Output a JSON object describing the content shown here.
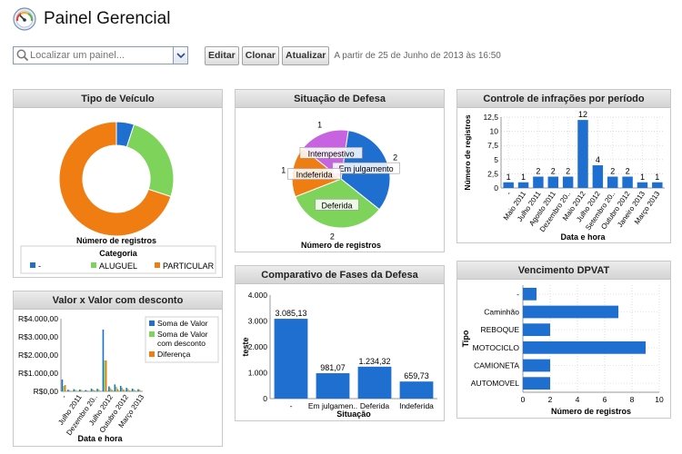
{
  "header": {
    "title": "Painel Gerencial"
  },
  "toolbar": {
    "search_placeholder": "Localizar um painel...",
    "edit_label": "Editar",
    "clone_label": "Clonar",
    "refresh_label": "Atualizar",
    "as_of_text": "A partir de 25 de Junho de 2013 às 16:50"
  },
  "panels": {
    "tipo_veiculo": {
      "title": "Tipo de Veículo"
    },
    "situacao_defesa": {
      "title": "Situação de Defesa"
    },
    "controle_infracoes": {
      "title": "Controle de infrações por período"
    },
    "valor_desconto": {
      "title": "Valor x Valor com desconto"
    },
    "comparativo_fases": {
      "title": "Comparativo de Fases da Defesa"
    },
    "vencimento_dpvat": {
      "title": "Vencimento DPVAT"
    }
  },
  "chart_data": [
    {
      "id": "tipo_veiculo",
      "type": "pie",
      "donut": true,
      "xlabel": "Número de registros",
      "legend_title": "Categoria",
      "legend_position": "bottom",
      "categories": [
        "-",
        "ALUGUEL",
        "PARTICULAR"
      ],
      "values": [
        1,
        5,
        14
      ],
      "colors": [
        "#1f6fd0",
        "#7ed35a",
        "#f07d12"
      ]
    },
    {
      "id": "situacao_defesa",
      "type": "pie",
      "xlabel": "Número de registros",
      "categories": [
        "Em julgamento",
        "Deferida",
        "Indeferida",
        "Intempestivo"
      ],
      "values": [
        2,
        2,
        1,
        1
      ],
      "colors": [
        "#1f6fd0",
        "#7ed35a",
        "#f07d12",
        "#c763e0"
      ]
    },
    {
      "id": "controle_infracoes",
      "type": "bar",
      "xlabel": "Data e hora",
      "ylabel": "Número de registros",
      "ylim": [
        0,
        12.5
      ],
      "yticks": [
        "0",
        "2,5",
        "5",
        "7,5",
        "10",
        "12,5"
      ],
      "categories": [
        "-",
        "Maio 2011",
        "Julho 2011",
        "Agosto 2011",
        "Dezembro 20..",
        "Maio 2012",
        "Julho 2012",
        "Setembro 20..",
        "Outubro 2012",
        "Janeiro 2013",
        "Março 2013"
      ],
      "values": [
        1,
        1,
        2,
        2,
        2,
        12,
        4,
        2,
        2,
        1,
        1
      ],
      "grid": true
    },
    {
      "id": "valor_desconto",
      "type": "bar",
      "xlabel": "Data e hora",
      "ylim": [
        0,
        4000
      ],
      "yticks": [
        "R$0,00",
        "R$1.000,00",
        "R$2.000,00",
        "R$3.000,00",
        "R$4.000,00"
      ],
      "xticks": [
        "-",
        "Julho 2011",
        "Dezembro 20..",
        "Julho 2012",
        "Outubro 2012",
        "Março 2013"
      ],
      "legend_position": "right",
      "series": [
        {
          "name": "Soma de Valor",
          "color": "#1f6fd0",
          "values": [
            650,
            90,
            120,
            100,
            70,
            150,
            140,
            3400,
            270,
            380,
            300,
            190,
            150,
            120
          ]
        },
        {
          "name": "Soma de Valor com desconto",
          "color": "#7ed35a",
          "values": [
            300,
            70,
            90,
            80,
            60,
            100,
            110,
            1700,
            180,
            250,
            200,
            140,
            110,
            90
          ]
        },
        {
          "name": "Diferença",
          "color": "#f07d12",
          "values": [
            350,
            20,
            30,
            20,
            10,
            50,
            30,
            1700,
            90,
            130,
            100,
            50,
            40,
            30
          ]
        }
      ]
    },
    {
      "id": "comparativo_fases",
      "type": "bar",
      "xlabel": "Situação",
      "ylabel": "teste",
      "ylim": [
        0,
        4000
      ],
      "yticks": [
        "0",
        "1.000",
        "2.000",
        "3.000",
        "4.000"
      ],
      "categories": [
        "-",
        "Em julgamen..",
        "Deferida",
        "Indeferida"
      ],
      "values": [
        3085.13,
        981.07,
        1234.32,
        659.73
      ],
      "value_labels": [
        "3.085,13",
        "981,07",
        "1.234,32",
        "659,73"
      ]
    },
    {
      "id": "vencimento_dpvat",
      "type": "bar",
      "orientation": "horizontal",
      "xlabel": "Número de registros",
      "ylabel": "Tipo",
      "xlim": [
        0,
        10
      ],
      "xticks": [
        "0",
        "2",
        "4",
        "6",
        "8",
        "10"
      ],
      "categories": [
        "-",
        "Caminhão",
        "REBOQUE",
        "MOTOCICLO",
        "CAMIONETA",
        "AUTOMOVEL"
      ],
      "values": [
        1,
        7,
        2,
        9,
        2,
        2
      ],
      "grid": true
    }
  ]
}
